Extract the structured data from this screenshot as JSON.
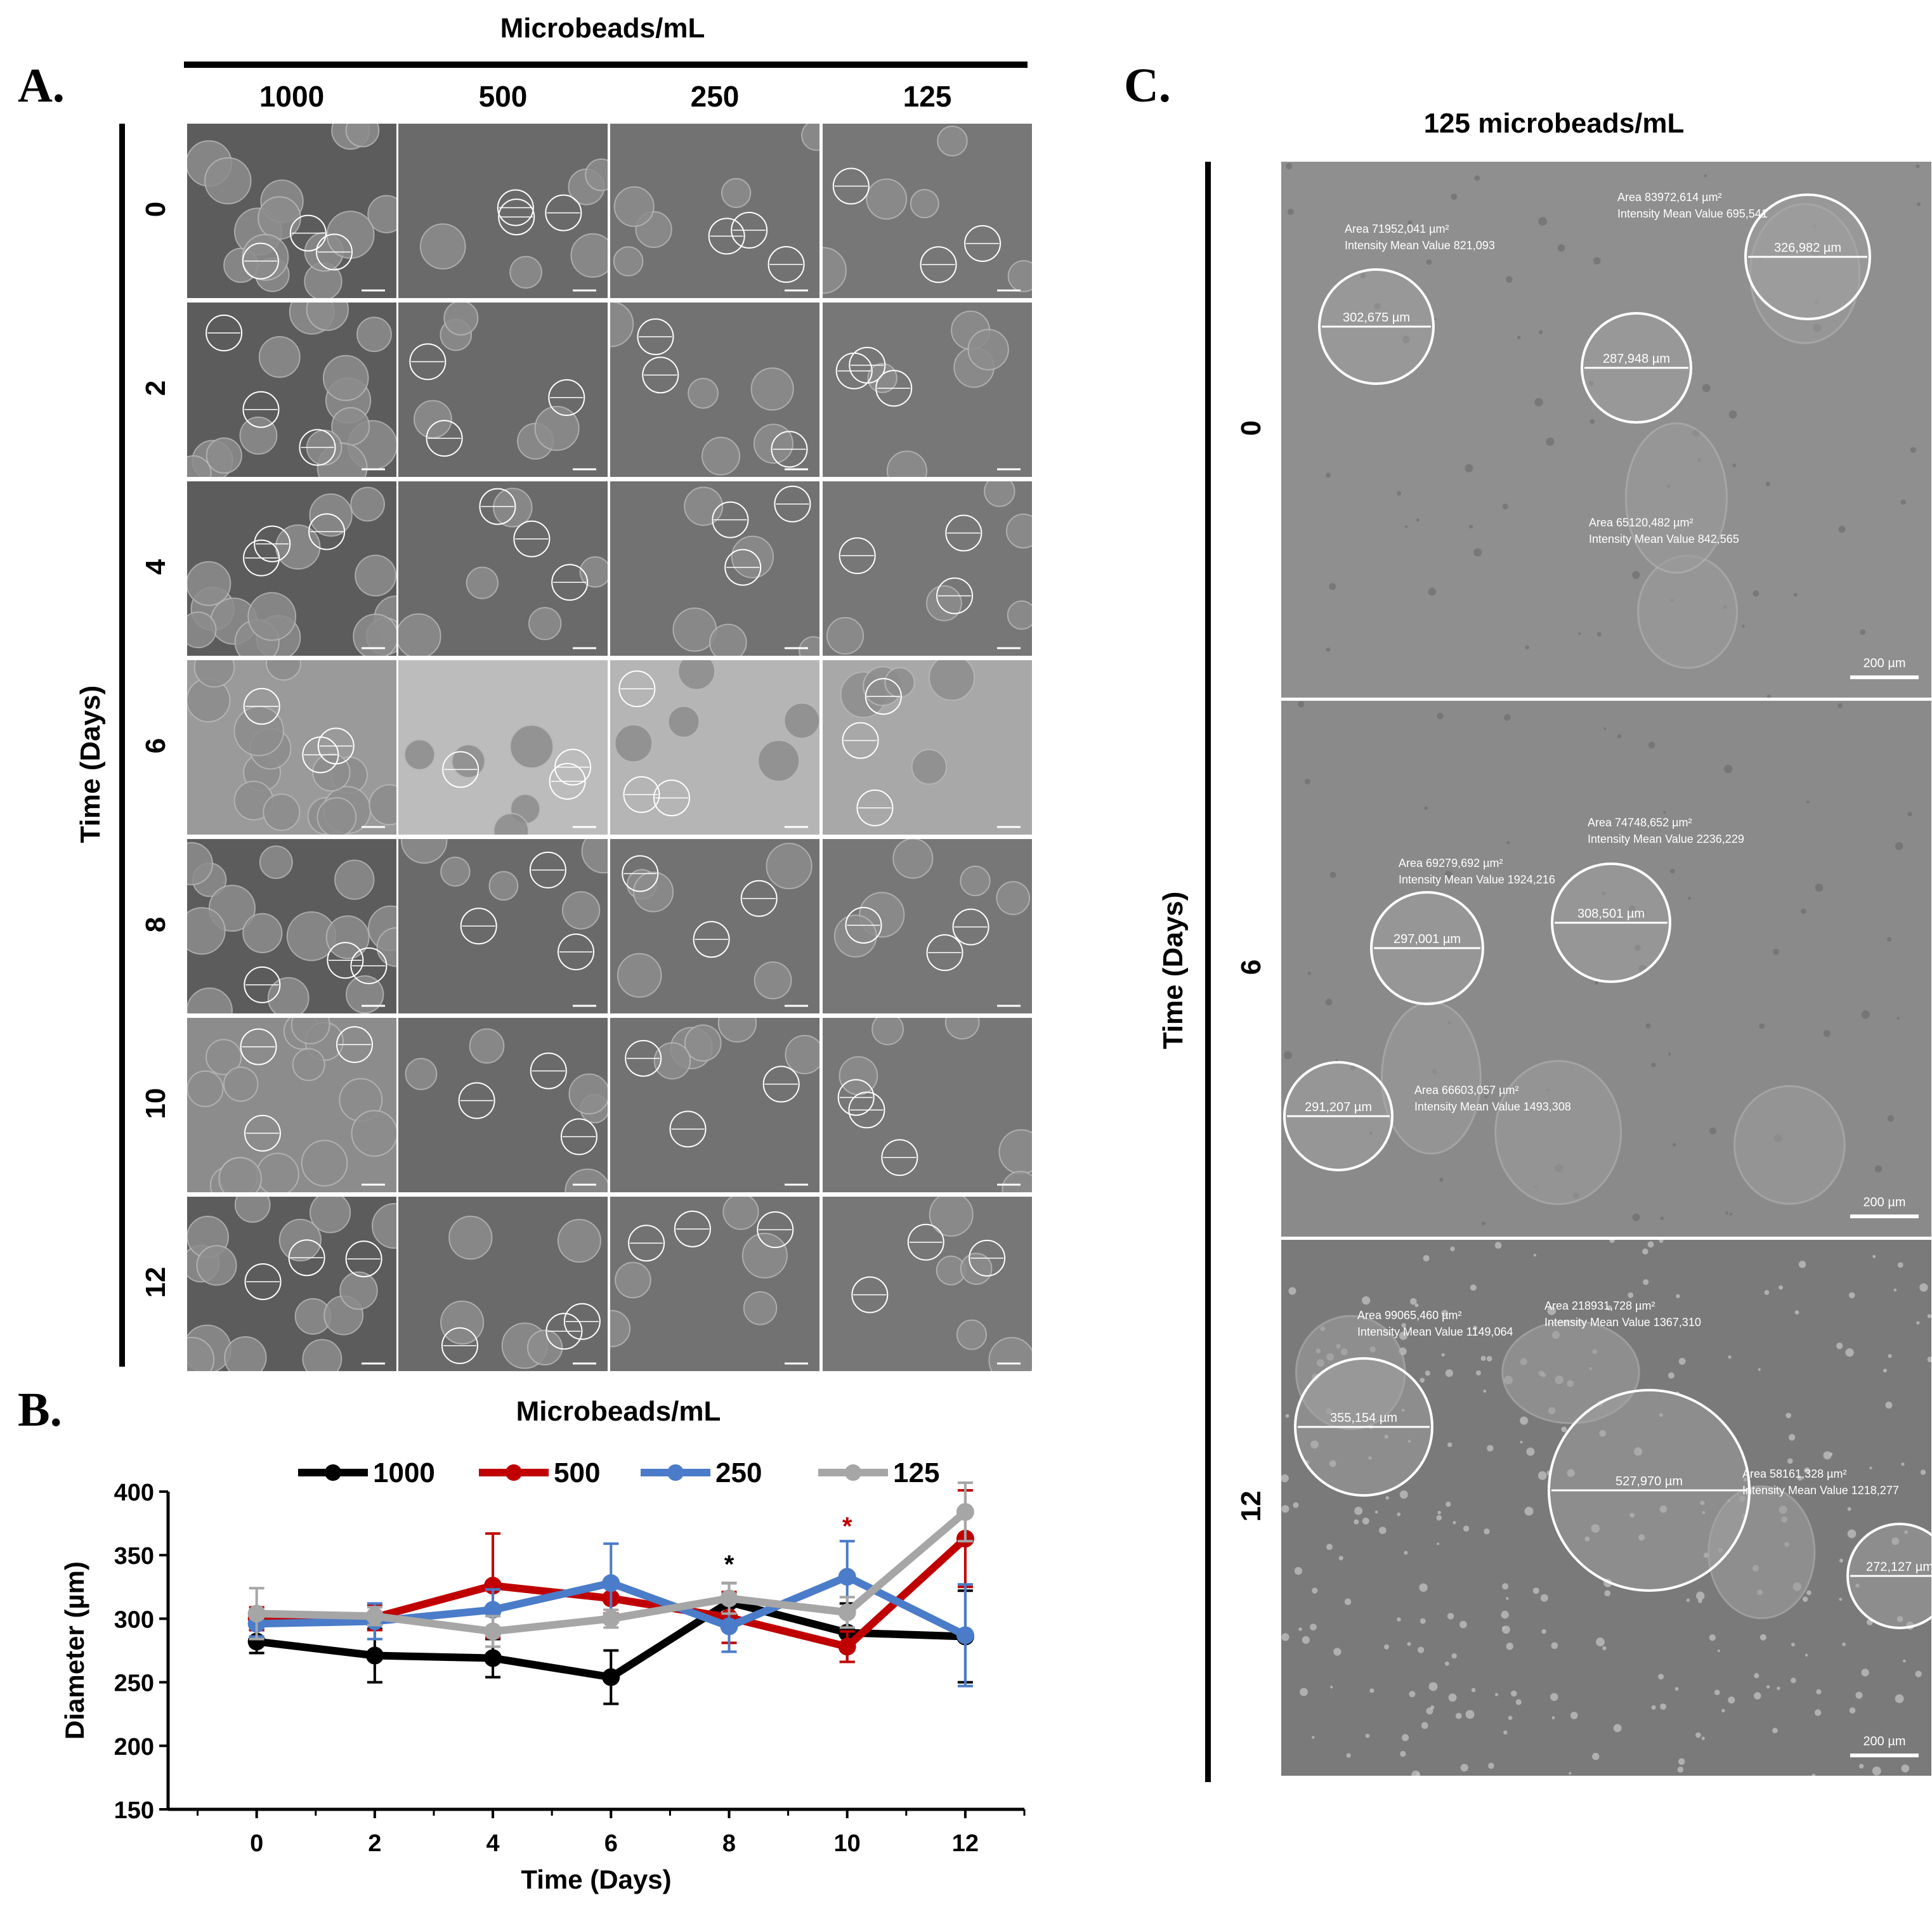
{
  "panelA": {
    "letter": "A.",
    "top_title": "Microbeads/mL",
    "columns": [
      "1000",
      "500",
      "250",
      "125"
    ],
    "rows": [
      "0",
      "2",
      "4",
      "6",
      "8",
      "10",
      "12"
    ],
    "yaxis_title": "Time (Days)"
  },
  "panelB": {
    "letter": "B."
  },
  "panelC": {
    "letter": "C.",
    "title": "125 microbeads/mL",
    "yaxis_title": "Time (Days)",
    "rows": [
      {
        "day": "0",
        "scale": "200 µm",
        "annotations": [
          {
            "area": "Area 71952,041 µm²",
            "intensity": "Intensity Mean Value 821,093",
            "diameter": "302,675 µm"
          },
          {
            "area": "Area 83972,614 µm²",
            "intensity": "Intensity Mean Value 695,541",
            "diameter": "326,982 µm"
          },
          {
            "area": "Area 65120,482 µm²",
            "intensity": "Intensity Mean Value 842,565",
            "diameter": "287,948 µm"
          }
        ]
      },
      {
        "day": "6",
        "scale": "200 µm",
        "annotations": [
          {
            "area": "Area 69279,692 µm²",
            "intensity": "Intensity Mean Value 1924,216",
            "diameter": "297,001 µm"
          },
          {
            "area": "Area 74748,652 µm²",
            "intensity": "Intensity Mean Value 2236,229",
            "diameter": "308,501 µm"
          },
          {
            "area": "Area 66603,057 µm²",
            "intensity": "Intensity Mean Value 1493,308",
            "diameter": "291,207 µm"
          }
        ]
      },
      {
        "day": "12",
        "scale": "200 µm",
        "annotations": [
          {
            "area": "Area 99065,460 µm²",
            "intensity": "Intensity Mean Value 1149,064",
            "diameter": "355,154 µm"
          },
          {
            "area": "Area 218931,728 µm²",
            "intensity": "Intensity Mean Value 1367,310",
            "diameter": "527,970 µm"
          },
          {
            "area": "Area 58161,328 µm²",
            "intensity": "Intensity Mean Value 1218,277",
            "diameter": "272,127 µm"
          }
        ]
      }
    ]
  },
  "chart_data": {
    "type": "line",
    "title": "Microbeads/mL",
    "xlabel": "Time (Days)",
    "ylabel": "Diameter (µm)",
    "x": [
      0,
      2,
      4,
      6,
      8,
      10,
      12
    ],
    "xlim": [
      -1.5,
      13
    ],
    "ylim": [
      150,
      400
    ],
    "yticks": [
      150,
      200,
      250,
      300,
      350,
      400
    ],
    "legend_position": "top",
    "series": [
      {
        "name": "1000",
        "color": "#000000",
        "values": [
          282,
          271,
          269,
          254,
          313,
          289,
          286
        ],
        "errors": [
          9,
          21,
          15,
          21,
          15,
          23,
          36
        ]
      },
      {
        "name": "500",
        "color": "#c00000",
        "values": [
          300,
          301,
          326,
          316,
          301,
          278,
          363
        ],
        "errors": [
          9,
          10,
          41,
          12,
          20,
          12,
          38
        ]
      },
      {
        "name": "250",
        "color": "#4a7cc9",
        "values": [
          296,
          298,
          307,
          328,
          294,
          333,
          287
        ],
        "errors": [
          10,
          14,
          16,
          31,
          20,
          28,
          40
        ]
      },
      {
        "name": "125",
        "color": "#a6a6a6",
        "values": [
          304,
          302,
          290,
          300,
          316,
          305,
          384
        ],
        "errors": [
          20,
          7,
          12,
          7,
          12,
          12,
          23
        ]
      }
    ],
    "annotations": [
      {
        "text": "*",
        "x": 8,
        "y": 345,
        "color": "#000000"
      },
      {
        "text": "*",
        "x": 10,
        "y": 375,
        "color": "#c00000"
      }
    ]
  }
}
